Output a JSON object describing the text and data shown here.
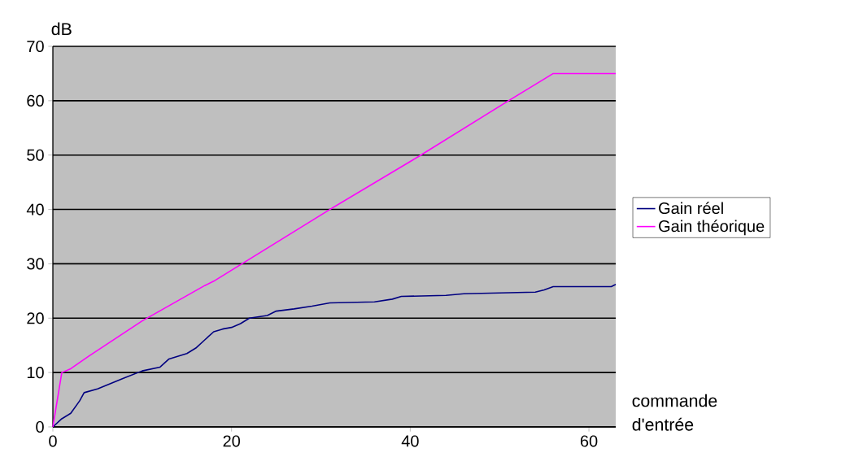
{
  "chart_data": {
    "type": "line",
    "ylabel": "dB",
    "xlabel": "commande d'entrée",
    "xlim": [
      0,
      63
    ],
    "xticks": [
      0,
      20,
      40,
      60
    ],
    "ylim": [
      0,
      70
    ],
    "yticks": [
      0,
      10,
      20,
      30,
      40,
      50,
      60,
      70
    ],
    "grid": "y",
    "legend": "right",
    "marker": "none",
    "line_style": "solid",
    "series": [
      {
        "name": "Gain réel",
        "color": "#000080",
        "x": [
          0,
          1,
          2,
          3,
          3.5,
          5,
          8,
          10,
          12,
          13,
          15,
          16,
          17,
          18,
          19,
          20,
          21,
          22,
          24,
          25,
          27,
          29,
          31,
          36,
          38,
          39,
          44,
          46,
          54,
          55,
          56,
          62.5,
          63
        ],
        "values": [
          0,
          1.5,
          2.5,
          4.8,
          6.3,
          7,
          9,
          10.3,
          11,
          12.5,
          13.5,
          14.5,
          16,
          17.5,
          18,
          18.3,
          19,
          20,
          20.5,
          21.3,
          21.7,
          22.2,
          22.8,
          23,
          23.5,
          24,
          24.2,
          24.5,
          24.8,
          25.2,
          25.8,
          25.8,
          26.2
        ]
      },
      {
        "name": "Gain théorique",
        "color": "#ff00ff",
        "x": [
          0,
          1,
          2,
          4,
          10,
          17,
          18,
          31,
          41,
          51,
          55,
          56,
          63
        ],
        "values": [
          0,
          10,
          10.7,
          13,
          19.5,
          26,
          26.8,
          40,
          49.8,
          60,
          64,
          65,
          65
        ]
      }
    ]
  }
}
